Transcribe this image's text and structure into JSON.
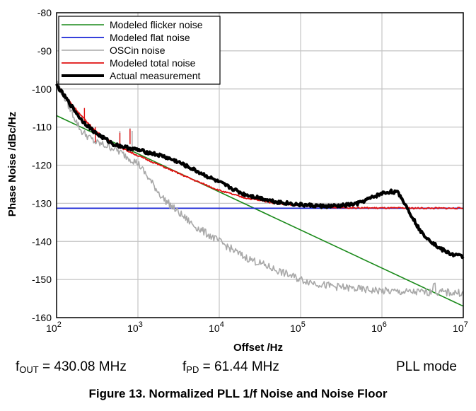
{
  "chart_data": {
    "type": "line",
    "title": "",
    "xlabel": "Offset /Hz",
    "ylabel": "Phase Noise /dBc/Hz",
    "x_scale": "log",
    "xlim": [
      100,
      10000000
    ],
    "ylim": [
      -160,
      -80
    ],
    "grid": true,
    "legend_position": "top-left",
    "x_ticks": [
      {
        "value": 100,
        "base": "10",
        "exp": "2"
      },
      {
        "value": 1000,
        "base": "10",
        "exp": "3"
      },
      {
        "value": 10000,
        "base": "10",
        "exp": "4"
      },
      {
        "value": 100000,
        "base": "10",
        "exp": "5"
      },
      {
        "value": 1000000,
        "base": "10",
        "exp": "6"
      },
      {
        "value": 10000000,
        "base": "10",
        "exp": "7"
      }
    ],
    "y_ticks": [
      "-80",
      "-90",
      "-100",
      "-110",
      "-120",
      "-130",
      "-140",
      "-150",
      "-160"
    ],
    "series": [
      {
        "name": "Modeled flicker noise",
        "color": "#1a8a1a",
        "width": 1.6,
        "x": [
          100,
          10000000
        ],
        "y": [
          -107,
          -157
        ]
      },
      {
        "name": "Modeled flat noise",
        "color": "#1a24d6",
        "width": 1.8,
        "x": [
          100,
          10000000
        ],
        "y": [
          -131.3,
          -131.3
        ]
      },
      {
        "name": "OSCin noise",
        "color": "#a8a8a8",
        "width": 1.6,
        "x": [
          100,
          200,
          300,
          500,
          700,
          1000,
          2000,
          3000,
          5000,
          10000,
          20000,
          50000,
          100000,
          200000,
          500000,
          1000000,
          2000000,
          4000000,
          4400000,
          4600000,
          10000000
        ],
        "y": [
          -98,
          -111,
          -114,
          -115.5,
          -117.5,
          -119.5,
          -128.5,
          -132,
          -136,
          -140,
          -144,
          -147.5,
          -150,
          -151.5,
          -152.5,
          -153,
          -153.3,
          -153.3,
          -150.5,
          -153.3,
          -153.5
        ],
        "spikes": [
          [
            300,
            -110.5
          ],
          [
            600,
            -111
          ],
          [
            800,
            -110.3
          ],
          [
            850,
            -111
          ]
        ]
      },
      {
        "name": "Modeled total noise",
        "color": "#e01010",
        "width": 1.8,
        "x": [
          100,
          200,
          300,
          500,
          1000,
          2000,
          5000,
          10000,
          20000,
          50000,
          100000,
          200000,
          500000,
          1000000,
          10000000
        ],
        "y": [
          -99,
          -107,
          -111,
          -114.5,
          -117.5,
          -120.3,
          -124,
          -126.6,
          -128.5,
          -130,
          -130.6,
          -131,
          -131.2,
          -131.25,
          -131.3
        ],
        "spikes": [
          [
            220,
            -105
          ],
          [
            300,
            -110
          ],
          [
            600,
            -111.5
          ],
          [
            800,
            -110.5
          ]
        ]
      },
      {
        "name": "Actual measurement",
        "color": "#000000",
        "width": 4,
        "x": [
          100,
          200,
          300,
          500,
          700,
          1000,
          2000,
          3000,
          5000,
          10000,
          20000,
          50000,
          100000,
          200000,
          300000,
          500000,
          700000,
          1000000,
          1300000,
          1600000,
          2000000,
          3000000,
          5000000,
          7000000,
          10000000
        ],
        "y": [
          -99,
          -108,
          -111.5,
          -114.5,
          -115.3,
          -116,
          -117.6,
          -119,
          -121.3,
          -124.5,
          -127.6,
          -129.6,
          -130.4,
          -130.8,
          -130.7,
          -130.1,
          -128.8,
          -127.4,
          -126.9,
          -127.3,
          -130.8,
          -137.5,
          -141.7,
          -143.3,
          -144
        ]
      }
    ]
  },
  "footer": {
    "fout_label": "f",
    "fout_sub": "OUT",
    "fout_value": " = 430.08 MHz",
    "fpd_label": "f",
    "fpd_sub": "PD",
    "fpd_value": " = 61.44 MHz",
    "mode": "PLL mode"
  },
  "caption": "Figure 13. Normalized PLL 1/f Noise and Noise Floor"
}
